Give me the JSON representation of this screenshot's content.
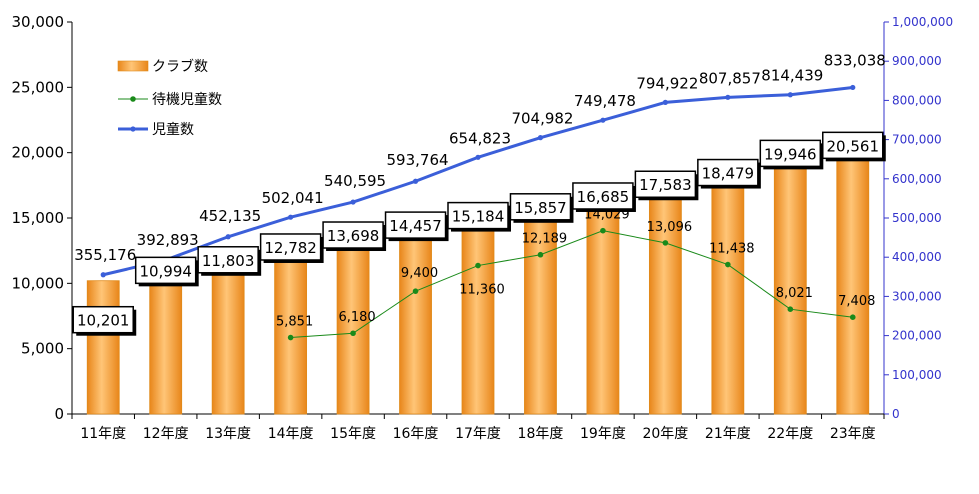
{
  "chart_data": {
    "type": "bar",
    "categories": [
      "11年度",
      "12年度",
      "13年度",
      "14年度",
      "15年度",
      "16年度",
      "17年度",
      "18年度",
      "19年度",
      "20年度",
      "21年度",
      "22年度",
      "23年度"
    ],
    "series": [
      {
        "name": "クラブ数",
        "type": "bar",
        "axis": "left",
        "values": [
          10201,
          10994,
          11803,
          12782,
          13698,
          14457,
          15184,
          15857,
          16685,
          17583,
          18479,
          19946,
          20561
        ],
        "labels": [
          "10,201",
          "10,994",
          "11,803",
          "12,782",
          "13,698",
          "14,457",
          "15,184",
          "15,857",
          "16,685",
          "17,583",
          "18,479",
          "19,946",
          "20,561"
        ]
      },
      {
        "name": "待機児童数",
        "type": "line",
        "axis": "left",
        "values": [
          null,
          null,
          null,
          5851,
          6180,
          9400,
          11360,
          12189,
          14029,
          13096,
          11438,
          8021,
          7408
        ],
        "labels": [
          "",
          "",
          "",
          "5,851",
          "6,180",
          "9,400",
          "11,360",
          "12,189",
          "14,029",
          "13,096",
          "11,438",
          "8,021",
          "7,408"
        ]
      },
      {
        "name": "児童数",
        "type": "line",
        "axis": "right",
        "values": [
          355176,
          392893,
          452135,
          502041,
          540595,
          593764,
          654823,
          704982,
          749478,
          794922,
          807857,
          814439,
          833038
        ],
        "labels": [
          "355,176",
          "392,893",
          "452,135",
          "502,041",
          "540,595",
          "593,764",
          "654,823",
          "704,982",
          "749,478",
          "794,922",
          "807,857",
          "814,439",
          "833,038"
        ]
      }
    ],
    "y_left": {
      "ylim": [
        0,
        30000
      ],
      "ticks": [
        0,
        5000,
        10000,
        15000,
        20000,
        25000,
        30000
      ],
      "tick_labels": [
        "0",
        "5,000",
        "10,000",
        "15,000",
        "20,000",
        "25,000",
        "30,000"
      ]
    },
    "y_right": {
      "ylim": [
        0,
        1000000
      ],
      "ticks": [
        0,
        100000,
        200000,
        300000,
        400000,
        500000,
        600000,
        700000,
        800000,
        900000,
        1000000
      ],
      "tick_labels": [
        "0",
        "100,000",
        "200,000",
        "300,000",
        "400,000",
        "500,000",
        "600,000",
        "700,000",
        "800,000",
        "900,000",
        "1,000,000"
      ]
    },
    "legend": {
      "position": "top-left",
      "items": [
        "クラブ数",
        "待機児童数",
        "児童数"
      ]
    },
    "grid": false,
    "colors": {
      "bars": "#f5a133",
      "bar_edge": "#e08a1a",
      "waiting_line": "#1a8a1a",
      "children_line": "#3b5fd9",
      "right_axis": "#3333cc"
    }
  }
}
